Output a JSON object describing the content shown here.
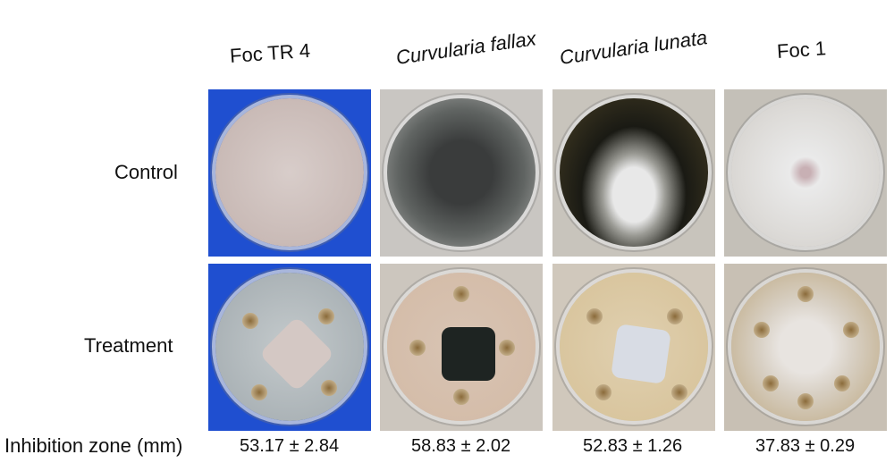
{
  "columns": [
    "Foc TR 4",
    "Curvularia fallax",
    "Curvularia lunata",
    "Foc 1"
  ],
  "rows": [
    "Control",
    "Treatment"
  ],
  "inhibition_label": "Inhibition zone (mm)",
  "inhibition_values": [
    "53.17 ± 2.84",
    "58.83 ± 2.02",
    "52.83 ± 1.26",
    "37.83 ± 0.29"
  ]
}
